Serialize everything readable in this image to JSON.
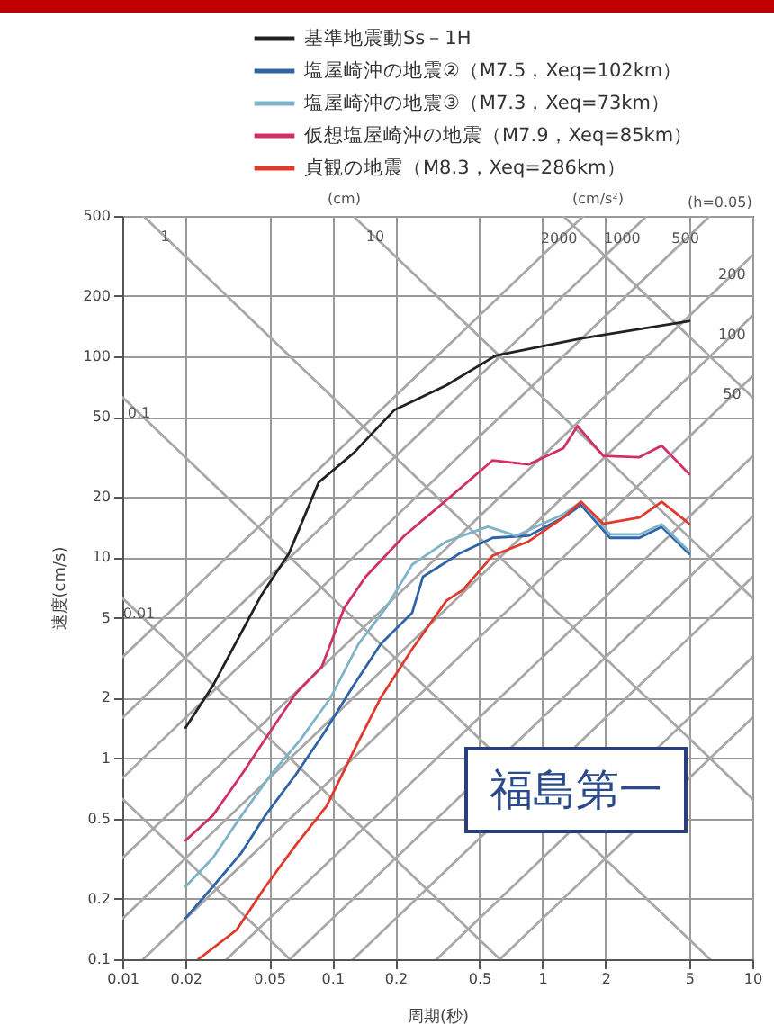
{
  "chart_data": {
    "type": "line",
    "xlabel": "周期(秒)",
    "ylabel": "速度(cm/s)",
    "log": "xy",
    "xlim": [
      0.01,
      10
    ],
    "xticks": [
      0.01,
      0.02,
      0.05,
      0.1,
      0.2,
      0.5,
      1,
      2,
      5,
      10
    ],
    "ylim": [
      0.1,
      500
    ],
    "yticks": [
      0.1,
      0.2,
      0.5,
      1,
      2,
      5,
      10,
      20,
      50,
      100,
      200,
      500
    ],
    "grid": true,
    "legend": "top",
    "marker": "none",
    "line_style": "solid",
    "series": [
      {
        "color": "#a8a8a8",
        "x": [
          0.01,
          0.0628
        ],
        "values": [
          0.628,
          0.1
        ]
      },
      {
        "color": "#a8a8a8",
        "x": [
          0.01,
          0.628
        ],
        "values": [
          6.28,
          0.1
        ]
      },
      {
        "color": "#a8a8a8",
        "x": [
          0.01,
          6.28
        ],
        "values": [
          62.8,
          0.1
        ]
      },
      {
        "color": "#a8a8a8",
        "x": [
          0.01257,
          10
        ],
        "values": [
          500,
          0.628
        ]
      },
      {
        "color": "#a8a8a8",
        "x": [
          0.1257,
          10
        ],
        "values": [
          500,
          6.28
        ]
      },
      {
        "color": "#a8a8a8",
        "x": [
          1.257,
          10
        ],
        "values": [
          500,
          62.8
        ]
      },
      {
        "color": "#a8a8a8",
        "x": [
          0.628,
          10
        ],
        "values": [
          0.1,
          1.59
        ]
      },
      {
        "color": "#a8a8a8",
        "x": [
          0.314,
          10
        ],
        "values": [
          0.1,
          3.18
        ]
      },
      {
        "color": "#a8a8a8",
        "x": [
          0.1257,
          10
        ],
        "values": [
          0.1,
          7.96
        ]
      },
      {
        "color": "#a8a8a8",
        "x": [
          0.0628,
          10
        ],
        "values": [
          0.1,
          15.9
        ]
      },
      {
        "color": "#a8a8a8",
        "x": [
          0.0314,
          10
        ],
        "values": [
          0.1,
          31.8
        ]
      },
      {
        "color": "#a8a8a8",
        "x": [
          0.01257,
          10
        ],
        "values": [
          0.1,
          79.6
        ]
      },
      {
        "color": "#a8a8a8",
        "x": [
          0.01,
          10
        ],
        "values": [
          0.159,
          159
        ]
      },
      {
        "color": "#a8a8a8",
        "x": [
          0.01,
          10
        ],
        "values": [
          0.318,
          318
        ]
      },
      {
        "color": "#a8a8a8",
        "x": [
          0.01,
          6.28
        ],
        "values": [
          0.796,
          500
        ]
      },
      {
        "color": "#a8a8a8",
        "x": [
          0.01,
          3.14
        ],
        "values": [
          1.59,
          500
        ]
      },
      {
        "color": "#a8a8a8",
        "x": [
          0.01,
          1.57
        ],
        "values": [
          3.18,
          500
        ]
      },
      {
        "name": "基準地震動Ss－1H",
        "color": "#222222",
        "x": [
          0.02,
          0.027,
          0.046,
          0.062,
          0.086,
          0.126,
          0.197,
          0.35,
          0.6,
          1.53,
          5.0
        ],
        "values": [
          1.42,
          2.3,
          6.5,
          10.4,
          23.6,
          33,
          54,
          72,
          101,
          123,
          150
        ]
      },
      {
        "name": "塩屋崎沖の地震②（M7.5，Xeq=102km）",
        "color": "#2f64a6",
        "x": [
          0.02,
          0.027,
          0.037,
          0.048,
          0.067,
          0.091,
          0.126,
          0.17,
          0.24,
          0.27,
          0.4,
          0.58,
          0.86,
          1.26,
          1.53,
          2.1,
          2.9,
          3.7,
          5.0
        ],
        "values": [
          0.16,
          0.23,
          0.34,
          0.52,
          0.83,
          1.33,
          2.3,
          3.7,
          5.3,
          8.0,
          10.4,
          12.5,
          12.8,
          15.8,
          18.2,
          12.5,
          12.5,
          14.2,
          10.4
        ]
      },
      {
        "name": "塩屋崎沖の地震③（M7.3，Xeq=73km）",
        "color": "#7fb3c8",
        "x": [
          0.02,
          0.027,
          0.037,
          0.051,
          0.071,
          0.098,
          0.133,
          0.18,
          0.24,
          0.35,
          0.55,
          0.75,
          1.26,
          1.53,
          2.1,
          2.9,
          3.7,
          5.0
        ],
        "values": [
          0.23,
          0.32,
          0.52,
          0.83,
          1.25,
          2.0,
          3.7,
          5.6,
          9.2,
          12.0,
          14.2,
          12.8,
          16.4,
          18.9,
          13,
          13,
          14.6,
          10.7
        ]
      },
      {
        "name": "仮想塩屋崎沖の地震（M7.9，Xeq=85km）",
        "color": "#d0306a",
        "x": [
          0.02,
          0.027,
          0.037,
          0.048,
          0.067,
          0.089,
          0.114,
          0.144,
          0.22,
          0.35,
          0.58,
          0.86,
          1.26,
          1.47,
          1.95,
          2.9,
          3.7,
          5.0
        ],
        "values": [
          0.39,
          0.52,
          0.83,
          1.25,
          2.1,
          2.85,
          5.6,
          8.0,
          12.8,
          19.3,
          30.4,
          29,
          35,
          45,
          32,
          31.5,
          36,
          26
        ]
      },
      {
        "name": "貞観の地震（M8.3，Xeq=286km）",
        "color": "#e03a2e",
        "x": [
          0.023,
          0.035,
          0.048,
          0.067,
          0.094,
          0.126,
          0.17,
          0.24,
          0.35,
          0.42,
          0.58,
          0.86,
          1.26,
          1.53,
          1.95,
          2.9,
          3.7,
          5.0
        ],
        "values": [
          0.1,
          0.14,
          0.23,
          0.37,
          0.58,
          1.08,
          2.0,
          3.5,
          6.1,
          6.9,
          10.2,
          12.0,
          15.8,
          18.9,
          14.7,
          15.8,
          18.9,
          14.7
        ]
      }
    ],
    "annotations": [
      "(cm)",
      "(cm/s²)",
      "(h=0.05)",
      "福島第一",
      {
        "text": "1",
        "x": 0.016,
        "y": 390
      },
      {
        "text": "10",
        "x": 0.16,
        "y": 390
      },
      {
        "text": "0.1",
        "x": 0.012,
        "y": 52
      },
      {
        "text": "0.01",
        "x": 0.012,
        "y": 5.2
      },
      {
        "text": "2000",
        "x": 1.2,
        "y": 382
      },
      {
        "text": "1000",
        "x": 2.4,
        "y": 382
      },
      {
        "text": "500",
        "x": 4.8,
        "y": 382
      },
      {
        "text": "200",
        "x": 8,
        "y": 254
      },
      {
        "text": "100",
        "x": 8,
        "y": 127
      },
      {
        "text": "50",
        "x": 8,
        "y": 64
      }
    ]
  }
}
